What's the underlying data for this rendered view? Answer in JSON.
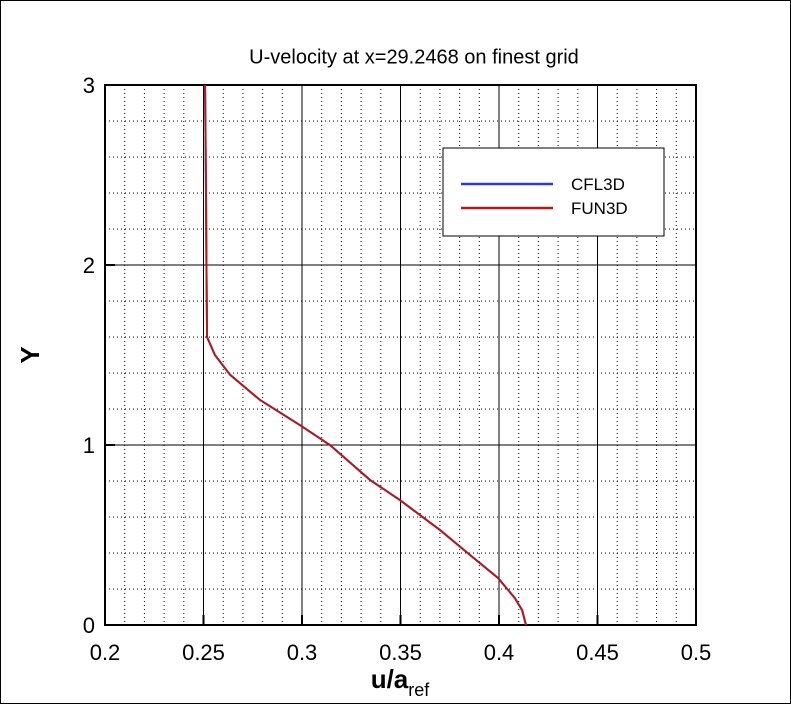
{
  "chart_data": {
    "type": "line",
    "title": "U-velocity at x=29.2468 on finest grid",
    "x_label": "u/a",
    "x_label_sub": "ref",
    "y_label": "Y",
    "x": [
      0.2508,
      0.2512,
      0.2515,
      0.2518,
      0.2558,
      0.2635,
      0.2787,
      0.299,
      0.3142,
      0.3345,
      0.3497,
      0.37,
      0.3853,
      0.3995,
      0.408,
      0.4117,
      0.4137
    ],
    "series": [
      {
        "name": "CFL3D",
        "color": "#2b3bd6",
        "values": [
          3,
          2.5,
          2.0,
          1.6,
          1.5,
          1.39,
          1.25,
          1.11,
          1.0,
          0.806,
          0.694,
          0.528,
          0.389,
          0.261,
          0.15,
          0.083,
          0
        ]
      },
      {
        "name": "FUN3D",
        "color": "#b31b1b",
        "values": [
          3,
          2.5,
          2.0,
          1.6,
          1.5,
          1.39,
          1.25,
          1.11,
          1.0,
          0.806,
          0.694,
          0.528,
          0.389,
          0.261,
          0.15,
          0.083,
          0
        ]
      }
    ],
    "xlim": [
      0.2,
      0.5
    ],
    "ylim": [
      0,
      3
    ],
    "xticks": [
      0.2,
      0.25,
      0.3,
      0.35,
      0.4,
      0.45,
      0.5
    ],
    "yticks": [
      0,
      1,
      2,
      3
    ],
    "xminorticks": [
      0.21,
      0.22,
      0.23,
      0.24,
      0.26,
      0.27,
      0.28,
      0.29,
      0.31,
      0.32,
      0.33,
      0.34,
      0.36,
      0.37,
      0.38,
      0.39,
      0.41,
      0.42,
      0.43,
      0.44,
      0.46,
      0.47,
      0.48,
      0.49
    ],
    "yminorticks": [
      0.2,
      0.4,
      0.6,
      0.8,
      1.2,
      1.4,
      1.6,
      1.8,
      2.2,
      2.4,
      2.6,
      2.8
    ],
    "grid": true,
    "legend": "upper right"
  }
}
